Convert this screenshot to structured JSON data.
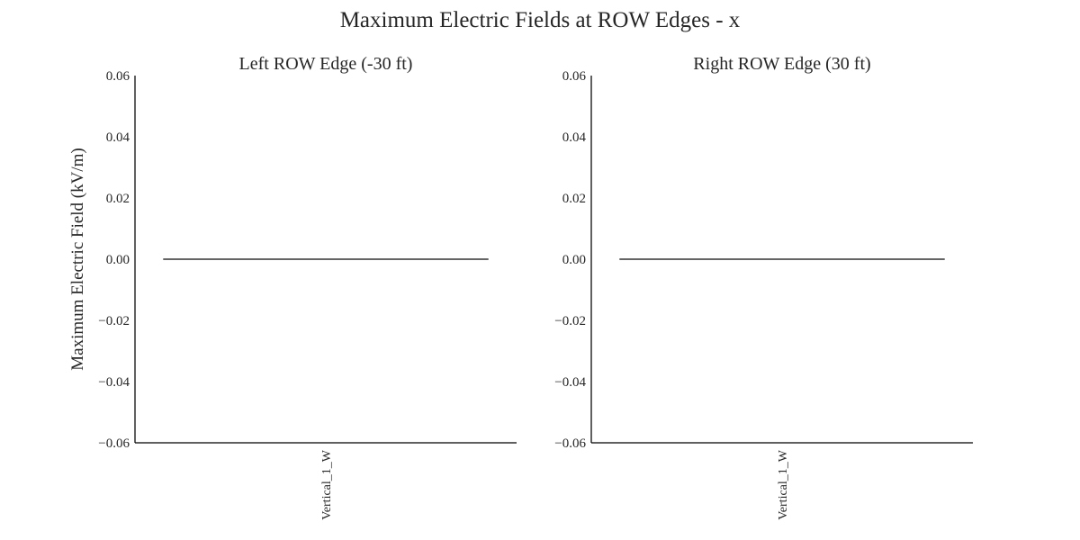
{
  "figure": {
    "title": "Maximum Electric Fields at ROW Edges - x",
    "ylabel": "Maximum Electric Field (kV/m)"
  },
  "chart_data": [
    {
      "type": "bar",
      "title": "Left ROW Edge (-30 ft)",
      "categories": [
        "Vertical_1_W"
      ],
      "series": [
        {
          "values": [
            0.0
          ]
        }
      ],
      "ylim": [
        -0.06,
        0.06
      ],
      "yticks": [
        0.06,
        0.04,
        0.02,
        0.0,
        -0.02,
        -0.04,
        -0.06
      ],
      "ytick_labels": [
        "0.06",
        "0.04",
        "0.02",
        "0.00",
        "−0.02",
        "−0.04",
        "−0.06"
      ],
      "grid": false,
      "colors": {
        "axis": "#000000",
        "bar_edge": "#262626"
      }
    },
    {
      "type": "bar",
      "title": "Right ROW Edge (30 ft)",
      "categories": [
        "Vertical_1_W"
      ],
      "series": [
        {
          "values": [
            0.0
          ]
        }
      ],
      "ylim": [
        -0.06,
        0.06
      ],
      "yticks": [
        0.06,
        0.04,
        0.02,
        0.0,
        -0.02,
        -0.04,
        -0.06
      ],
      "ytick_labels": [
        "0.06",
        "0.04",
        "0.02",
        "0.00",
        "−0.02",
        "−0.04",
        "−0.06"
      ],
      "grid": false,
      "colors": {
        "axis": "#000000",
        "bar_edge": "#262626"
      }
    }
  ]
}
